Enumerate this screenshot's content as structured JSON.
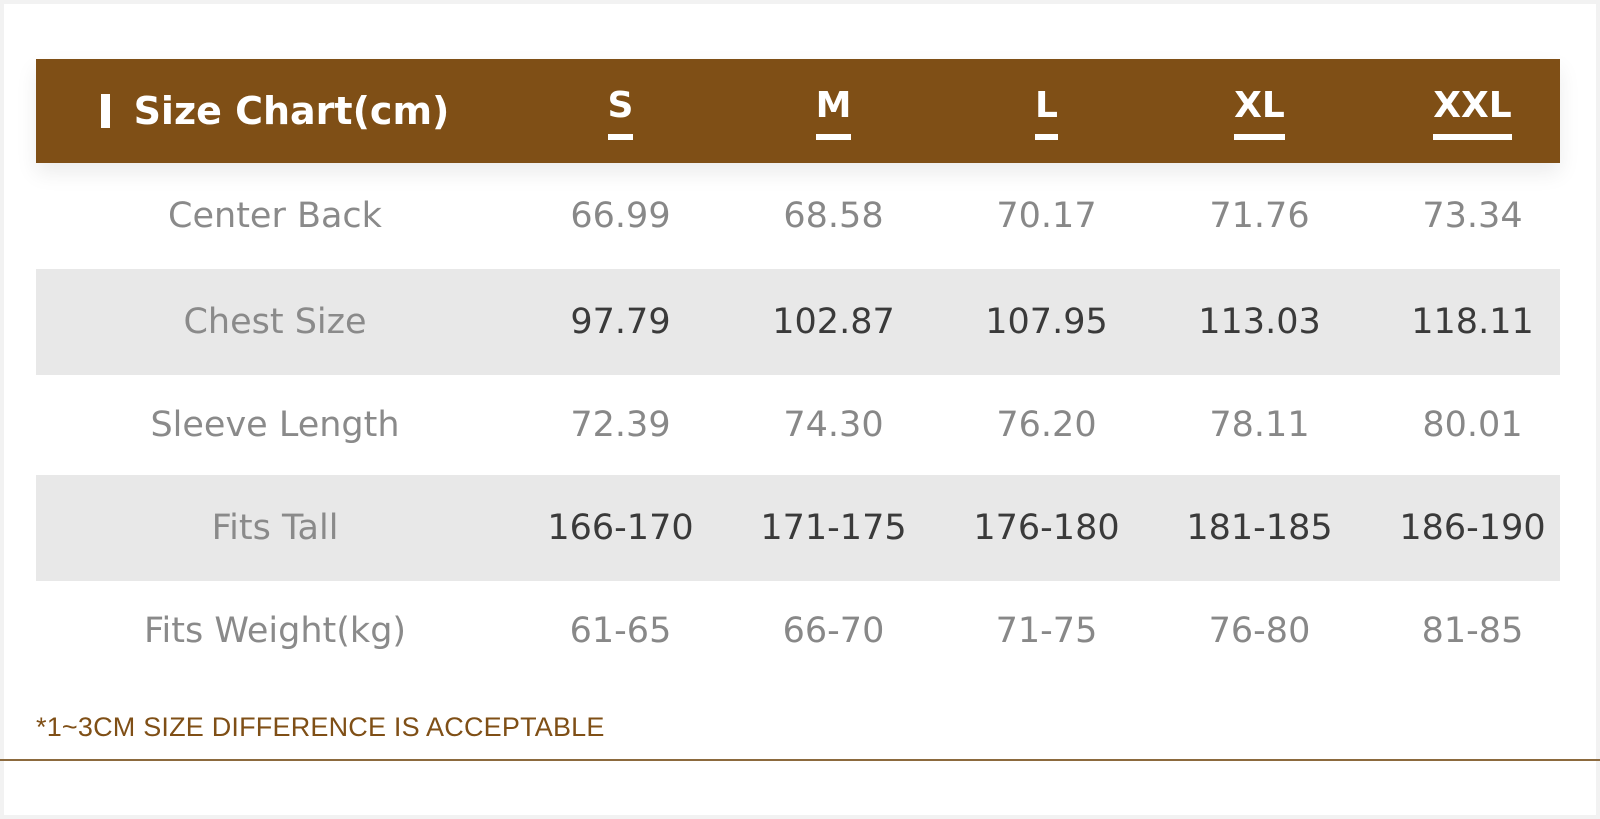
{
  "header": {
    "title": "Size Chart(cm)",
    "sizes": [
      "S",
      "M",
      "L",
      "XL",
      "XXL"
    ]
  },
  "rows": [
    {
      "label": "Center Back",
      "values": [
        "66.99",
        "68.58",
        "70.17",
        "71.76",
        "73.34"
      ]
    },
    {
      "label": "Chest Size",
      "values": [
        "97.79",
        "102.87",
        "107.95",
        "113.03",
        "118.11"
      ]
    },
    {
      "label": "Sleeve Length",
      "values": [
        "72.39",
        "74.30",
        "76.20",
        "78.11",
        "80.01"
      ]
    },
    {
      "label": "Fits Tall",
      "values": [
        "166-170",
        "171-175",
        "176-180",
        "181-185",
        "186-190"
      ]
    },
    {
      "label": "Fits Weight(kg)",
      "values": [
        "61-65",
        "66-70",
        "71-75",
        "76-80",
        "81-85"
      ]
    }
  ],
  "note": "*1~3CM SIZE DIFFERENCE IS ACCEPTABLE",
  "colors": {
    "header_bg": "#7f4f16",
    "shade_row": "#e8e8e8",
    "note_text": "#7f4f16"
  }
}
